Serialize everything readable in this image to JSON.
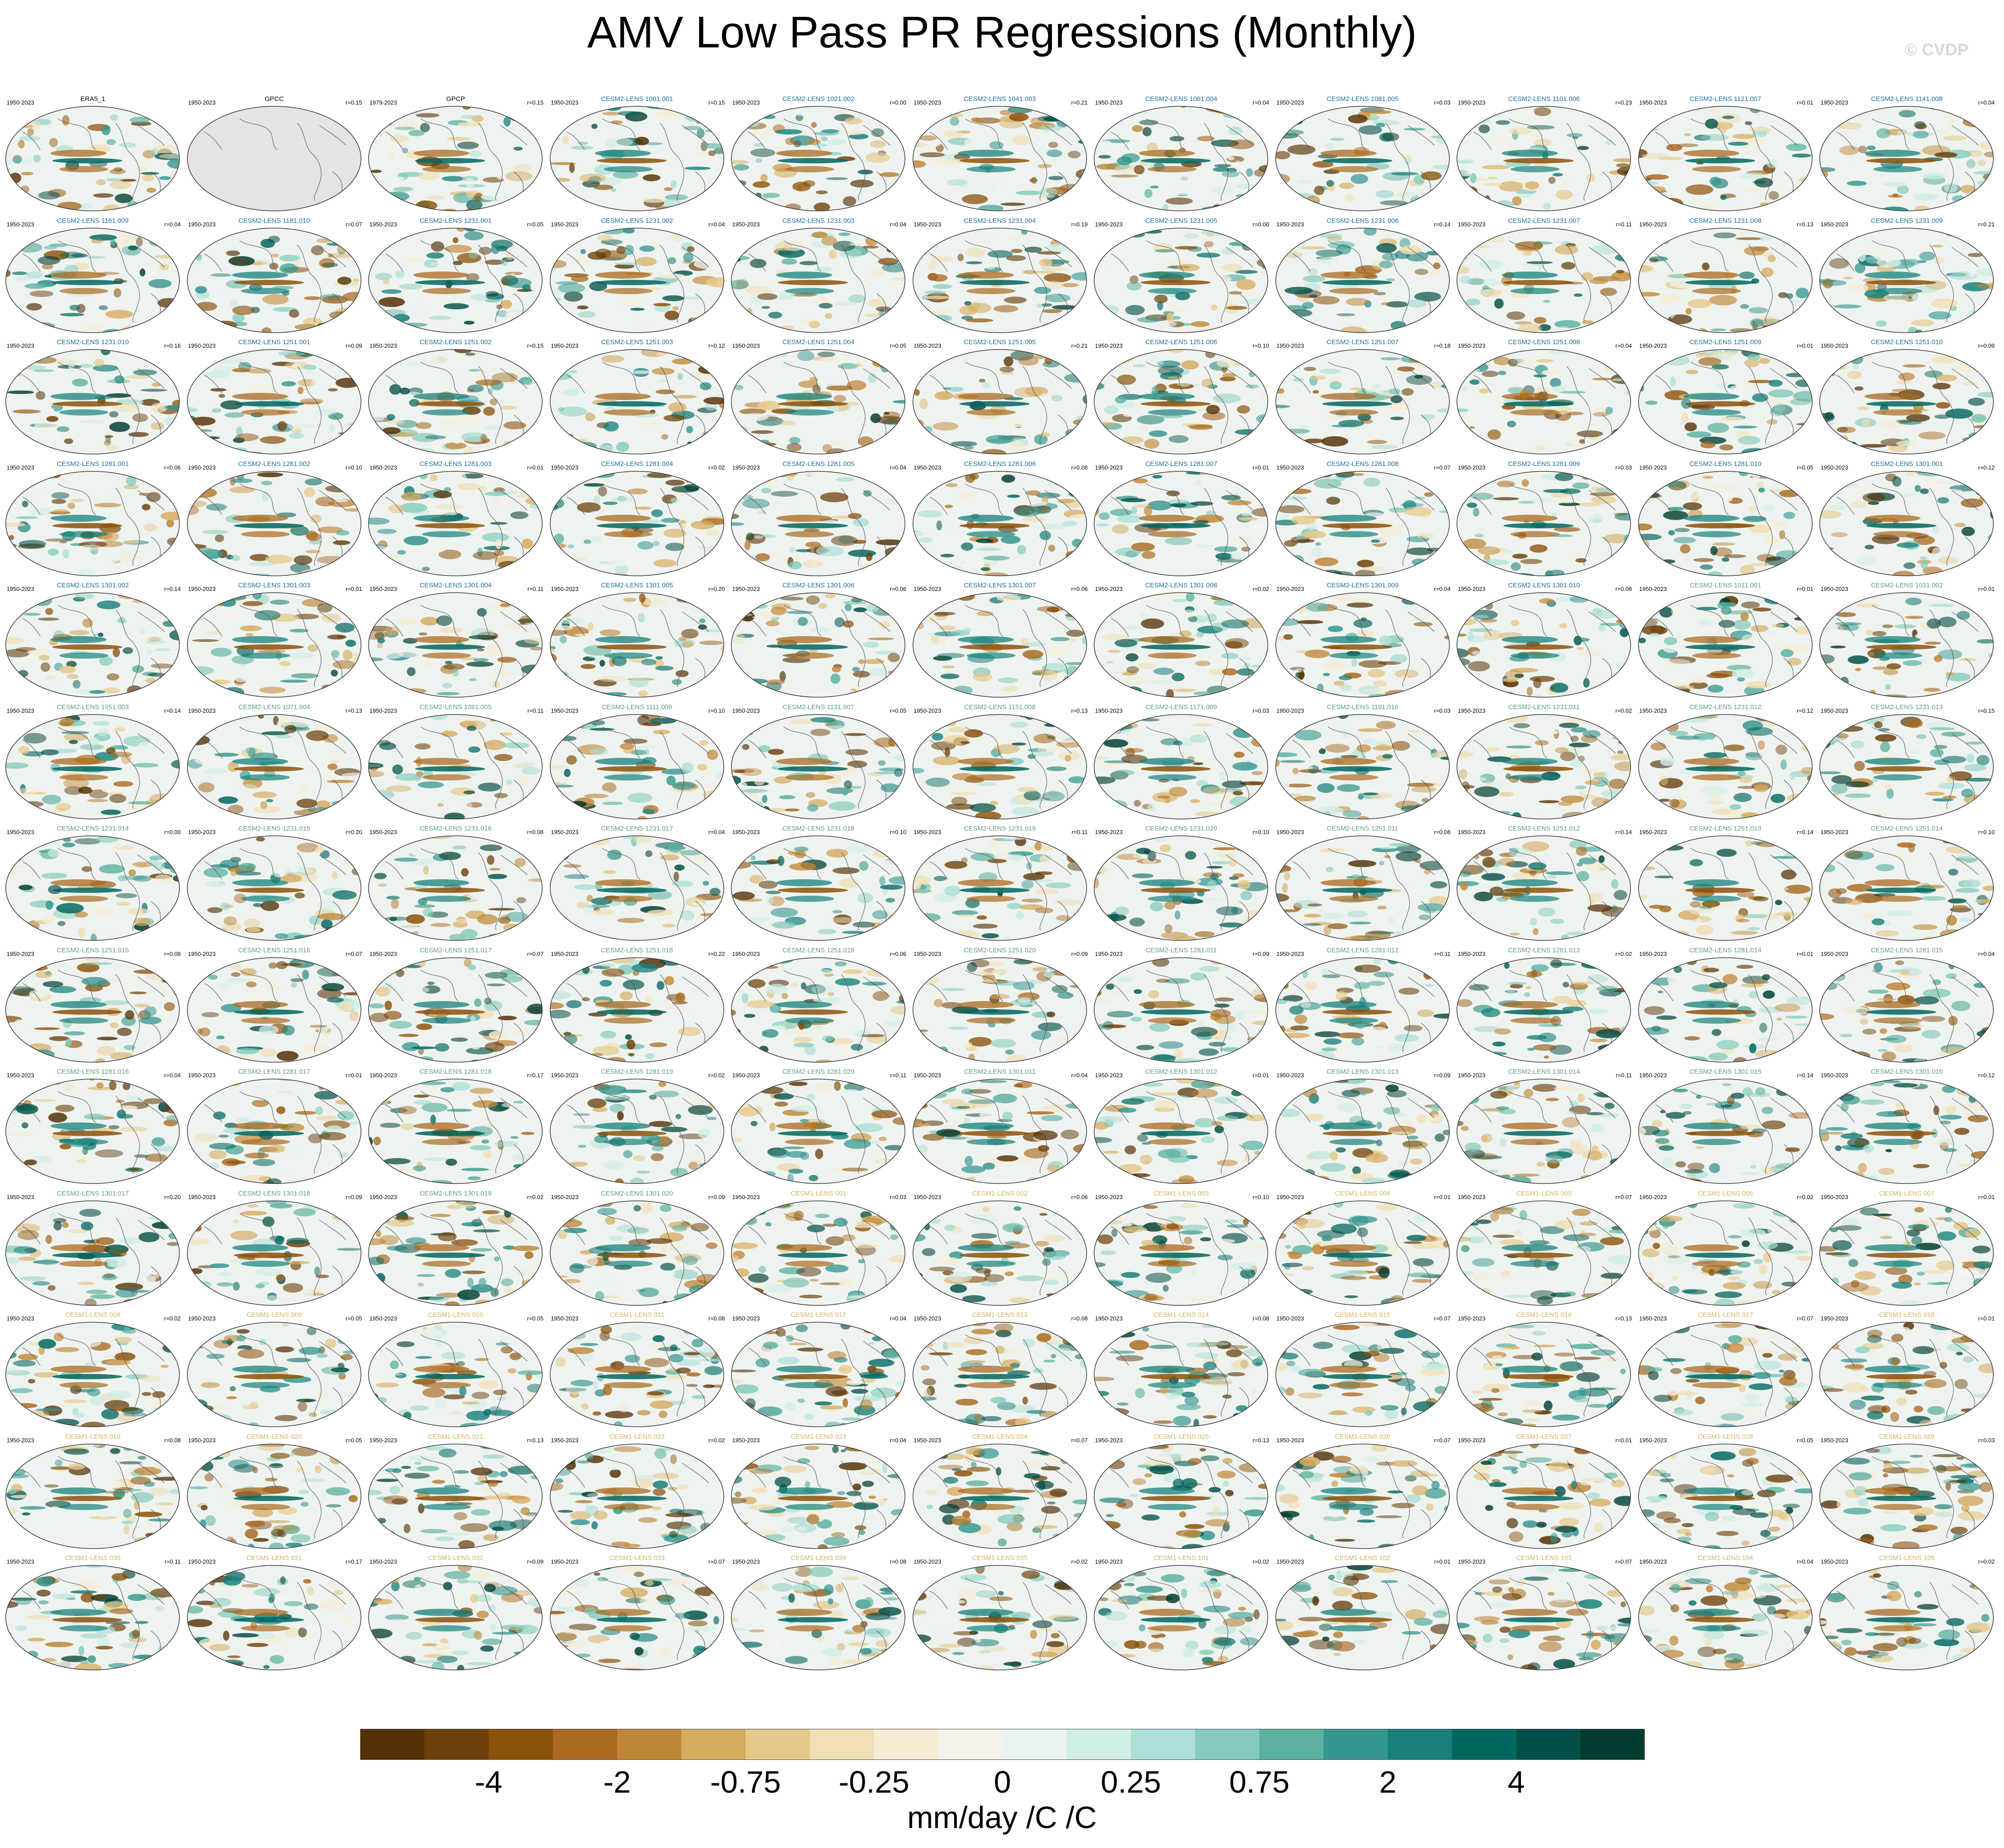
{
  "title": "AMV Low Pass PR Regressions (Monthly)",
  "watermark": "© CVDP",
  "chart_data": {
    "type": "map-panels",
    "grid": {
      "rows": 13,
      "columns": 11,
      "projection": "global ellipse (Robinson-like)"
    },
    "panels": [
      {
        "title": "ERA5_1",
        "period": "1950-2023",
        "r": ""
      },
      {
        "title": "GPCC",
        "period": "1950-2023",
        "r": "r=0.15",
        "empty": true
      },
      {
        "title": "GPCP",
        "period": "1979-2023",
        "r": "r=0.15"
      },
      {
        "title": "CESM2-LENS 1001.001",
        "period": "1950-2023",
        "r": "r=0.15"
      },
      {
        "title": "CESM2-LENS 1021.002",
        "period": "1950-2023",
        "r": "r=0.00"
      },
      {
        "title": "CESM2-LENS 1041.003",
        "period": "1950-2023",
        "r": "r=0.21"
      },
      {
        "title": "CESM2-LENS 1061.004",
        "period": "1950-2023",
        "r": "r=0.04"
      },
      {
        "title": "CESM2-LENS 1081.005",
        "period": "1950-2023",
        "r": "r=0.03"
      },
      {
        "title": "CESM2-LENS 1101.006",
        "period": "1950-2023",
        "r": "r=0.23"
      },
      {
        "title": "CESM2-LENS 1121.007",
        "period": "1950-2023",
        "r": "r=0.01"
      },
      {
        "title": "CESM2-LENS 1141.008",
        "period": "1950-2023",
        "r": "r=0.04"
      },
      {
        "title": "CESM2-LENS 1161.009",
        "period": "1950-2023",
        "r": "r=0.04"
      },
      {
        "title": "CESM2-LENS 1181.010",
        "period": "1950-2023",
        "r": "r=0.07"
      },
      {
        "title": "CESM2-LENS 1231.001",
        "period": "1950-2023",
        "r": "r=0.05"
      },
      {
        "title": "CESM2-LENS 1231.002",
        "period": "1950-2023",
        "r": "r=0.04"
      },
      {
        "title": "CESM2-LENS 1231.003",
        "period": "1950-2023",
        "r": "r=0.04"
      },
      {
        "title": "CESM2-LENS 1231.004",
        "period": "1950-2023",
        "r": "r=0.19"
      },
      {
        "title": "CESM2-LENS 1231.005",
        "period": "1950-2023",
        "r": "r=0.00"
      },
      {
        "title": "CESM2-LENS 1231.006",
        "period": "1950-2023",
        "r": "r=0.14"
      },
      {
        "title": "CESM2-LENS 1231.007",
        "period": "1950-2023",
        "r": "r=0.11"
      },
      {
        "title": "CESM2-LENS 1231.008",
        "period": "1950-2023",
        "r": "r=0.13"
      },
      {
        "title": "CESM2-LENS 1231.009",
        "period": "1950-2023",
        "r": "r=0.21"
      },
      {
        "title": "CESM2-LENS 1231.010",
        "period": "1950-2023",
        "r": "r=0.16"
      },
      {
        "title": "CESM2-LENS 1251.001",
        "period": "1950-2023",
        "r": "r=0.09"
      },
      {
        "title": "CESM2-LENS 1251.002",
        "period": "1950-2023",
        "r": "r=0.15"
      },
      {
        "title": "CESM2-LENS 1251.003",
        "period": "1950-2023",
        "r": "r=0.12"
      },
      {
        "title": "CESM2-LENS 1251.004",
        "period": "1950-2023",
        "r": "r=0.05"
      },
      {
        "title": "CESM2-LENS 1251.005",
        "period": "1950-2023",
        "r": "r=0.21"
      },
      {
        "title": "CESM2-LENS 1251.006",
        "period": "1950-2023",
        "r": "r=0.10"
      },
      {
        "title": "CESM2-LENS 1251.007",
        "period": "1950-2023",
        "r": "r=0.18"
      },
      {
        "title": "CESM2-LENS 1251.008",
        "period": "1950-2023",
        "r": "r=0.04"
      },
      {
        "title": "CESM2-LENS 1251.009",
        "period": "1950-2023",
        "r": "r=0.01"
      },
      {
        "title": "CESM2-LENS 1251.010",
        "period": "1950-2023",
        "r": "r=0.09"
      },
      {
        "title": "CESM2-LENS 1281.001",
        "period": "1950-2023",
        "r": "r=0.06"
      },
      {
        "title": "CESM2-LENS 1281.002",
        "period": "1950-2023",
        "r": "r=0.10"
      },
      {
        "title": "CESM2-LENS 1281.003",
        "period": "1950-2023",
        "r": "r=0.01"
      },
      {
        "title": "CESM2-LENS 1281.004",
        "period": "1950-2023",
        "r": "r=0.02"
      },
      {
        "title": "CESM2-LENS 1281.005",
        "period": "1950-2023",
        "r": "r=0.04"
      },
      {
        "title": "CESM2-LENS 1281.006",
        "period": "1950-2023",
        "r": "r=0.08"
      },
      {
        "title": "CESM2-LENS 1281.007",
        "period": "1950-2023",
        "r": "r=0.01"
      },
      {
        "title": "CESM2-LENS 1281.008",
        "period": "1950-2023",
        "r": "r=0.07"
      },
      {
        "title": "CESM2-LENS 1281.009",
        "period": "1950-2023",
        "r": "r=0.03"
      },
      {
        "title": "CESM2-LENS 1281.010",
        "period": "1950-2023",
        "r": "r=0.05"
      },
      {
        "title": "CESM2-LENS 1301.001",
        "period": "1950-2023",
        "r": "r=0.12"
      },
      {
        "title": "CESM2-LENS 1301.002",
        "period": "1950-2023",
        "r": "r=0.14"
      },
      {
        "title": "CESM2-LENS 1301.003",
        "period": "1950-2023",
        "r": "r=0.01"
      },
      {
        "title": "CESM2-LENS 1301.004",
        "period": "1950-2023",
        "r": "r=0.11"
      },
      {
        "title": "CESM2-LENS 1301.005",
        "period": "1950-2023",
        "r": "r=0.20"
      },
      {
        "title": "CESM2-LENS 1301.006",
        "period": "1950-2023",
        "r": "r=0.06"
      },
      {
        "title": "CESM2-LENS 1301.007",
        "period": "1950-2023",
        "r": "r=0.06"
      },
      {
        "title": "CESM2-LENS 1301.008",
        "period": "1950-2023",
        "r": "r=0.02"
      },
      {
        "title": "CESM2-LENS 1301.009",
        "period": "1950-2023",
        "r": "r=0.04"
      },
      {
        "title": "CESM2-LENS 1301.010",
        "period": "1950-2023",
        "r": "r=0.08"
      },
      {
        "title": "CESM2-LENS 1011.001",
        "period": "1950-2023",
        "r": "r=0.01"
      },
      {
        "title": "CESM2-LENS 1031.002",
        "period": "1950-2023",
        "r": "r=0.01"
      },
      {
        "title": "CESM2-LENS 1051.003",
        "period": "1950-2023",
        "r": "r=0.14"
      },
      {
        "title": "CESM2-LENS 1071.004",
        "period": "1950-2023",
        "r": "r=0.13"
      },
      {
        "title": "CESM2-LENS 1091.005",
        "period": "1950-2023",
        "r": "r=0.11"
      },
      {
        "title": "CESM2-LENS 1111.006",
        "period": "1950-2023",
        "r": "r=0.10"
      },
      {
        "title": "CESM2-LENS 1131.007",
        "period": "1950-2023",
        "r": "r=0.05"
      },
      {
        "title": "CESM2-LENS 1151.008",
        "period": "1950-2023",
        "r": "r=0.13"
      },
      {
        "title": "CESM2-LENS 1171.009",
        "period": "1950-2023",
        "r": "r=0.03"
      },
      {
        "title": "CESM2-LENS 1191.010",
        "period": "1950-2023",
        "r": "r=0.03"
      },
      {
        "title": "CESM2-LENS 1231.011",
        "period": "1950-2023",
        "r": "r=0.02"
      },
      {
        "title": "CESM2-LENS 1231.012",
        "period": "1950-2023",
        "r": "r=0.12"
      },
      {
        "title": "CESM2-LENS 1231.013",
        "period": "1950-2023",
        "r": "r=0.15"
      },
      {
        "title": "CESM2-LENS 1231.014",
        "period": "1950-2023",
        "r": "r=0.00"
      },
      {
        "title": "CESM2-LENS 1231.015",
        "period": "1950-2023",
        "r": "r=0.20"
      },
      {
        "title": "CESM2-LENS 1231.016",
        "period": "1950-2023",
        "r": "r=0.08"
      },
      {
        "title": "CESM2-LENS 1231.017",
        "period": "1950-2023",
        "r": "r=0.04"
      },
      {
        "title": "CESM2-LENS 1231.018",
        "period": "1950-2023",
        "r": "r=0.10"
      },
      {
        "title": "CESM2-LENS 1231.019",
        "period": "1950-2023",
        "r": "r=0.11"
      },
      {
        "title": "CESM2-LENS 1231.020",
        "period": "1950-2023",
        "r": "r=0.10"
      },
      {
        "title": "CESM2-LENS 1251.011",
        "period": "1950-2023",
        "r": "r=0.08"
      },
      {
        "title": "CESM2-LENS 1251.012",
        "period": "1950-2023",
        "r": "r=0.14"
      },
      {
        "title": "CESM2-LENS 1251.013",
        "period": "1950-2023",
        "r": "r=0.14"
      },
      {
        "title": "CESM2-LENS 1251.014",
        "period": "1950-2023",
        "r": "r=0.10"
      },
      {
        "title": "CESM2-LENS 1251.015",
        "period": "1950-2023",
        "r": "r=0.08"
      },
      {
        "title": "CESM2-LENS 1251.016",
        "period": "1950-2023",
        "r": "r=0.07"
      },
      {
        "title": "CESM2-LENS 1251.017",
        "period": "1950-2023",
        "r": "r=0.07"
      },
      {
        "title": "CESM2-LENS 1251.018",
        "period": "1950-2023",
        "r": "r=0.22"
      },
      {
        "title": "CESM2-LENS 1251.019",
        "period": "1950-2023",
        "r": "r=0.06"
      },
      {
        "title": "CESM2-LENS 1251.020",
        "period": "1950-2023",
        "r": "r=0.09"
      },
      {
        "title": "CESM2-LENS 1281.011",
        "period": "1950-2023",
        "r": "r=0.09"
      },
      {
        "title": "CESM2-LENS 1281.012",
        "period": "1950-2023",
        "r": "r=0.11"
      },
      {
        "title": "CESM2-LENS 1281.013",
        "period": "1950-2023",
        "r": "r=0.02"
      },
      {
        "title": "CESM2-LENS 1281.014",
        "period": "1950-2023",
        "r": "r=0.01"
      },
      {
        "title": "CESM2-LENS 1281.015",
        "period": "1950-2023",
        "r": "r=0.04"
      },
      {
        "title": "CESM2-LENS 1281.016",
        "period": "1950-2023",
        "r": "r=0.04"
      },
      {
        "title": "CESM2-LENS 1281.017",
        "period": "1950-2023",
        "r": "r=0.01"
      },
      {
        "title": "CESM2-LENS 1281.018",
        "period": "1950-2023",
        "r": "r=0.17"
      },
      {
        "title": "CESM2-LENS 1281.019",
        "period": "1950-2023",
        "r": "r=0.02"
      },
      {
        "title": "CESM2-LENS 1281.020",
        "period": "1950-2023",
        "r": "r=0.11"
      },
      {
        "title": "CESM2-LENS 1301.011",
        "period": "1950-2023",
        "r": "r=0.04"
      },
      {
        "title": "CESM2-LENS 1301.012",
        "period": "1950-2023",
        "r": "r=0.01"
      },
      {
        "title": "CESM2-LENS 1301.013",
        "period": "1950-2023",
        "r": "r=0.09"
      },
      {
        "title": "CESM2-LENS 1301.014",
        "period": "1950-2023",
        "r": "r=0.11"
      },
      {
        "title": "CESM2-LENS 1301.015",
        "period": "1950-2023",
        "r": "r=0.14"
      },
      {
        "title": "CESM2-LENS 1301.016",
        "period": "1950-2023",
        "r": "r=0.12"
      },
      {
        "title": "CESM2-LENS 1301.017",
        "period": "1950-2023",
        "r": "r=0.20"
      },
      {
        "title": "CESM2-LENS 1301.018",
        "period": "1950-2023",
        "r": "r=0.09"
      },
      {
        "title": "CESM2-LENS 1301.019",
        "period": "1950-2023",
        "r": "r=0.02"
      },
      {
        "title": "CESM2-LENS 1301.020",
        "period": "1950-2023",
        "r": "r=0.09"
      },
      {
        "title": "CESM1-LENS 001",
        "period": "1950-2023",
        "r": "r=0.03"
      },
      {
        "title": "CESM1-LENS 002",
        "period": "1950-2023",
        "r": "r=0.06"
      },
      {
        "title": "CESM1-LENS 003",
        "period": "1950-2023",
        "r": "r=0.10"
      },
      {
        "title": "CESM1-LENS 004",
        "period": "1950-2023",
        "r": "r=0.01"
      },
      {
        "title": "CESM1-LENS 005",
        "period": "1950-2023",
        "r": "r=0.07"
      },
      {
        "title": "CESM1-LENS 006",
        "period": "1950-2023",
        "r": "r=0.02"
      },
      {
        "title": "CESM1-LENS 007",
        "period": "1950-2023",
        "r": "r=0.01"
      },
      {
        "title": "CESM1-LENS 008",
        "period": "1950-2023",
        "r": "r=0.02"
      },
      {
        "title": "CESM1-LENS 009",
        "period": "1950-2023",
        "r": "r=0.05"
      },
      {
        "title": "CESM1-LENS 010",
        "period": "1950-2023",
        "r": "r=0.05"
      },
      {
        "title": "CESM1-LENS 011",
        "period": "1950-2023",
        "r": "r=0.08"
      },
      {
        "title": "CESM1-LENS 012",
        "period": "1950-2023",
        "r": "r=0.04"
      },
      {
        "title": "CESM1-LENS 013",
        "period": "1950-2023",
        "r": "r=0.08"
      },
      {
        "title": "CESM1-LENS 014",
        "period": "1950-2023",
        "r": "r=0.08"
      },
      {
        "title": "CESM1-LENS 015",
        "period": "1950-2023",
        "r": "r=0.07"
      },
      {
        "title": "CESM1-LENS 016",
        "period": "1950-2023",
        "r": "r=0.13"
      },
      {
        "title": "CESM1-LENS 017",
        "period": "1950-2023",
        "r": "r=0.07"
      },
      {
        "title": "CESM1-LENS 018",
        "period": "1950-2023",
        "r": "r=0.01"
      },
      {
        "title": "CESM1-LENS 019",
        "period": "1950-2023",
        "r": "r=0.08"
      },
      {
        "title": "CESM1-LENS 020",
        "period": "1950-2023",
        "r": "r=0.05"
      },
      {
        "title": "CESM1-LENS 021",
        "period": "1950-2023",
        "r": "r=0.13"
      },
      {
        "title": "CESM1-LENS 022",
        "period": "1950-2023",
        "r": "r=0.02"
      },
      {
        "title": "CESM1-LENS 023",
        "period": "1950-2023",
        "r": "r=0.04"
      },
      {
        "title": "CESM1-LENS 024",
        "period": "1950-2023",
        "r": "r=0.07"
      },
      {
        "title": "CESM1-LENS 025",
        "period": "1950-2023",
        "r": "r=0.13"
      },
      {
        "title": "CESM1-LENS 026",
        "period": "1950-2023",
        "r": "r=0.07"
      },
      {
        "title": "CESM1-LENS 027",
        "period": "1950-2023",
        "r": "r=0.01"
      },
      {
        "title": "CESM1-LENS 028",
        "period": "1950-2023",
        "r": "r=0.05"
      },
      {
        "title": "CESM1-LENS 029",
        "period": "1950-2023",
        "r": "r=0.03"
      },
      {
        "title": "CESM1-LENS 030",
        "period": "1950-2023",
        "r": "r=0.11"
      },
      {
        "title": "CESM1-LENS 031",
        "period": "1950-2023",
        "r": "r=0.17"
      },
      {
        "title": "CESM1-LENS 032",
        "period": "1950-2023",
        "r": "r=0.09"
      },
      {
        "title": "CESM1-LENS 033",
        "period": "1950-2023",
        "r": "r=0.07"
      },
      {
        "title": "CESM1-LENS 034",
        "period": "1950-2023",
        "r": "r=0.08"
      },
      {
        "title": "CESM1-LENS 035",
        "period": "1950-2023",
        "r": "r=0.02"
      },
      {
        "title": "CESM1-LENS 101",
        "period": "1950-2023",
        "r": "r=0.02"
      },
      {
        "title": "CESM1-LENS 102",
        "period": "1950-2023",
        "r": "r=0.01"
      },
      {
        "title": "CESM1-LENS 103",
        "period": "1950-2023",
        "r": "r=0.07"
      },
      {
        "title": "CESM1-LENS 104",
        "period": "1950-2023",
        "r": "r=0.04"
      },
      {
        "title": "CESM1-LENS 105",
        "period": "1950-2023",
        "r": "r=0.02"
      }
    ],
    "title_colors": {
      "obs": "#000000",
      "cesm2_first": "#1e6d9c",
      "cesm2_second": "#5d9a86",
      "cesm1": "#d1b35e"
    },
    "colorbar": {
      "label": "mm/day /C /C",
      "tick_labels": [
        "-4",
        "-2",
        "-0.75",
        "-0.25",
        "0",
        "0.25",
        "0.75",
        "2",
        "4"
      ],
      "colors": [
        "#543005",
        "#6d400a",
        "#8c510a",
        "#a9691f",
        "#c08637",
        "#d6aa5f",
        "#e6c98a",
        "#f0dfb4",
        "#f6ecd4",
        "#f5f2ec",
        "#eaf3f0",
        "#d0ede6",
        "#addfd6",
        "#85cbbb",
        "#5bb0a0",
        "#35978f",
        "#17807a",
        "#01665e",
        "#014f47",
        "#003c30"
      ]
    }
  }
}
